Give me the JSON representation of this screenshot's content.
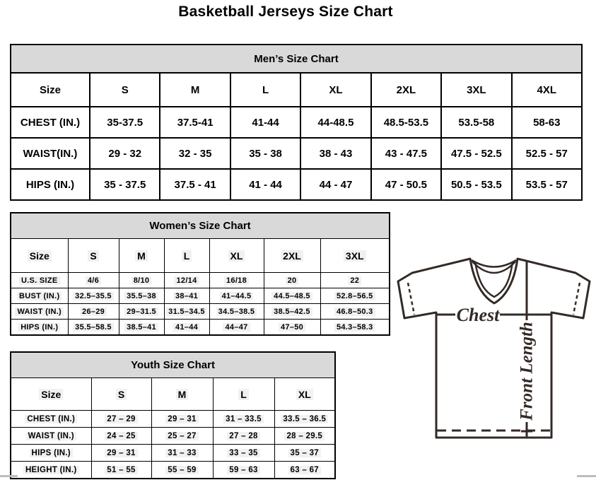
{
  "page": {
    "title": "Basketball Jerseys Size Chart"
  },
  "mens": {
    "title": "Men’s Size Chart",
    "size_label": "Size",
    "sizes": [
      "S",
      "M",
      "L",
      "XL",
      "2XL",
      "3XL",
      "4XL"
    ],
    "rows": [
      {
        "label": "CHEST (IN.)",
        "values": [
          "35-37.5",
          "37.5-41",
          "41-44",
          "44-48.5",
          "48.5-53.5",
          "53.5-58",
          "58-63"
        ]
      },
      {
        "label": "WAIST(IN.)",
        "values": [
          "29 - 32",
          "32 - 35",
          "35 - 38",
          "38 - 43",
          "43 - 47.5",
          "47.5 - 52.5",
          "52.5 - 57"
        ]
      },
      {
        "label": "HIPS (IN.)",
        "values": [
          "35 - 37.5",
          "37.5 - 41",
          "41 - 44",
          "44 - 47",
          "47 - 50.5",
          "50.5 - 53.5",
          "53.5 - 57"
        ]
      }
    ]
  },
  "womens": {
    "title": "Women’s Size Chart",
    "size_label": "Size",
    "sizes": [
      "S",
      "M",
      "L",
      "XL",
      "2XL",
      "3XL"
    ],
    "rows": [
      {
        "label": "U.S. SIZE",
        "values": [
          "4/6",
          "8/10",
          "12/14",
          "16/18",
          "20",
          "22"
        ]
      },
      {
        "label": "BUST (IN.)",
        "values": [
          "32.5–35.5",
          "35.5–38",
          "38–41",
          "41–44.5",
          "44.5–48.5",
          "52.8–56.5"
        ]
      },
      {
        "label": "WAIST (IN.)",
        "values": [
          "26–29",
          "29–31.5",
          "31.5–34.5",
          "34.5–38.5",
          "38.5–42.5",
          "46.8–50.3"
        ]
      },
      {
        "label": "HIPS (IN.)",
        "values": [
          "35.5–58.5",
          "38.5–41",
          "41–44",
          "44–47",
          "47–50",
          "54.3–58.3"
        ]
      }
    ]
  },
  "youth": {
    "title": "Youth Size Chart",
    "size_label": "Size",
    "sizes": [
      "S",
      "M",
      "L",
      "XL"
    ],
    "rows": [
      {
        "label": "CHEST (IN.)",
        "values": [
          "27 – 29",
          "29 – 31",
          "31 – 33.5",
          "33.5 – 36.5"
        ]
      },
      {
        "label": "WAIST (IN.)",
        "values": [
          "24 – 25",
          "25 – 27",
          "27 – 28",
          "28 – 29.5"
        ]
      },
      {
        "label": "HIPS (IN.)",
        "values": [
          "29 – 31",
          "31 – 33",
          "33 – 35",
          "35 – 37"
        ]
      },
      {
        "label": "HEIGHT (IN.)",
        "values": [
          "51 – 55",
          "55 – 59",
          "59 – 63",
          "63 – 67"
        ]
      }
    ]
  },
  "diagram": {
    "chest_label": "Chest",
    "front_length_label": "Front Length",
    "line_color": "#332a26"
  }
}
